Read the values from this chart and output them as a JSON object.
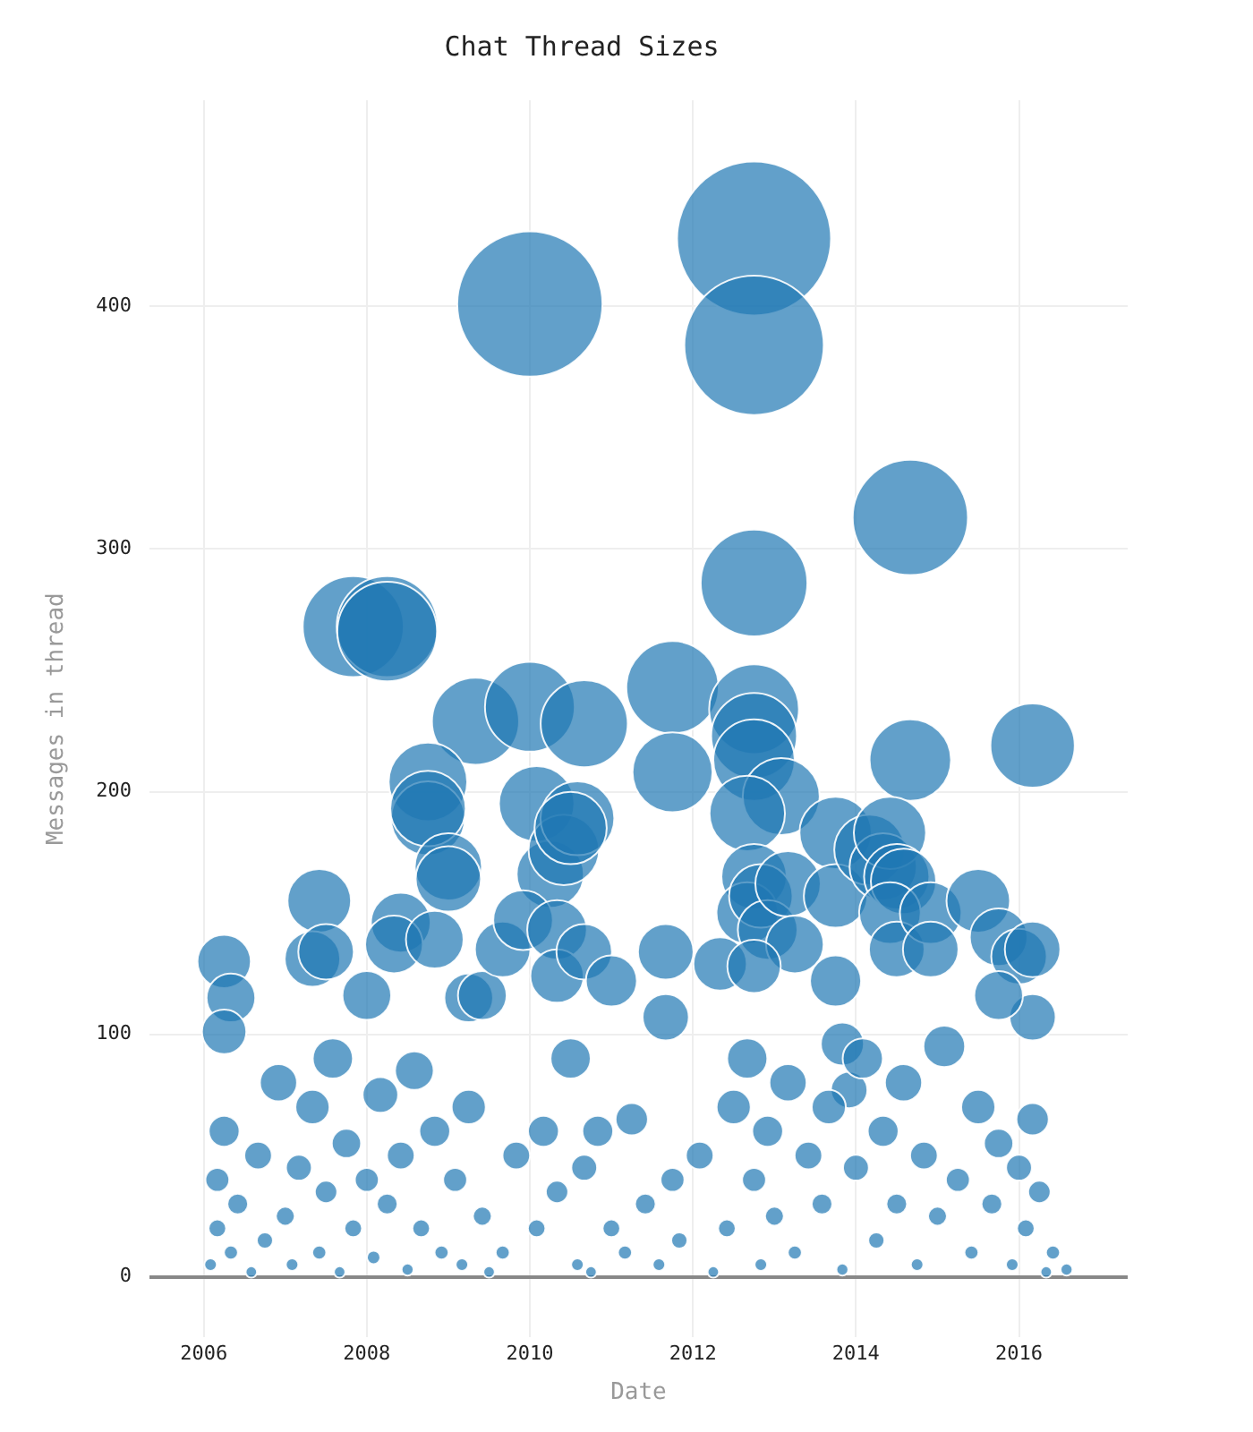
{
  "chart_data": {
    "type": "bubble",
    "title": "Chat Thread Sizes",
    "xlabel": "Date",
    "ylabel": "Messages in thread",
    "xlim": [
      "2005-05",
      "2017-05"
    ],
    "xticks": [
      "2006",
      "2008",
      "2010",
      "2012",
      "2014",
      "2016"
    ],
    "ylim": [
      -25,
      485
    ],
    "yticks": [
      0,
      100,
      200,
      300,
      400
    ],
    "grid": true,
    "legend": false,
    "series": [
      {
        "color": "#1f77b4",
        "x": [
          "2012-10",
          "2012-10",
          "2010-01",
          "2014-09",
          "2012-10",
          "2007-11",
          "2008-04",
          "2008-04",
          "2009-05",
          "2010-01",
          "2010-09",
          "2011-10",
          "2011-10",
          "2012-10",
          "2012-10",
          "2012-10",
          "2013-02",
          "2014-09",
          "2016-03",
          "2008-10",
          "2008-10",
          "2008-10",
          "2009-01",
          "2009-01",
          "2010-02",
          "2010-04",
          "2010-06",
          "2010-08",
          "2010-07",
          "2006-04",
          "2006-05",
          "2006-04",
          "2007-06",
          "2007-05",
          "2007-07",
          "2008-01",
          "2008-06",
          "2008-05",
          "2008-11",
          "2009-04",
          "2009-06",
          "2009-09",
          "2009-12",
          "2010-05",
          "2010-05",
          "2010-09",
          "2011-01",
          "2011-09",
          "2012-05",
          "2011-09",
          "2012-09",
          "2012-10",
          "2012-09",
          "2012-11",
          "2012-12",
          "2013-03",
          "2013-04",
          "2012-10",
          "2013-10",
          "2013-10",
          "2014-03",
          "2014-05",
          "2014-06",
          "2014-07",
          "2014-08",
          "2014-06",
          "2014-07",
          "2014-12",
          "2014-12",
          "2015-07",
          "2015-10",
          "2016-01",
          "2016-03",
          "2016-03",
          "2015-10",
          "2013-10",
          "2013-11",
          "2013-12",
          "2006-02",
          "2006-03",
          "2006-03",
          "2006-04",
          "2006-05",
          "2006-06",
          "2006-08",
          "2006-09",
          "2006-10",
          "2006-12",
          "2007-01",
          "2007-02",
          "2007-03",
          "2007-05",
          "2007-06",
          "2007-07",
          "2007-08",
          "2007-09",
          "2007-10",
          "2007-11",
          "2008-01",
          "2008-02",
          "2008-03",
          "2008-04",
          "2008-06",
          "2008-07",
          "2008-08",
          "2008-09",
          "2008-11",
          "2008-12",
          "2009-02",
          "2009-03",
          "2009-04",
          "2009-06",
          "2009-07",
          "2009-09",
          "2009-11",
          "2010-02",
          "2010-03",
          "2010-05",
          "2010-07",
          "2010-08",
          "2010-09",
          "2010-10",
          "2010-11",
          "2011-01",
          "2011-03",
          "2011-04",
          "2011-06",
          "2011-08",
          "2011-10",
          "2011-11",
          "2012-02",
          "2012-04",
          "2012-06",
          "2012-07",
          "2012-09",
          "2012-10",
          "2012-11",
          "2012-12",
          "2013-01",
          "2013-03",
          "2013-04",
          "2013-06",
          "2013-08",
          "2013-09",
          "2013-11",
          "2014-01",
          "2014-02",
          "2014-04",
          "2014-05",
          "2014-07",
          "2014-08",
          "2014-10",
          "2014-11",
          "2015-01",
          "2015-02",
          "2015-04",
          "2015-06",
          "2015-07",
          "2015-09",
          "2015-10",
          "2015-12",
          "2016-01",
          "2016-02",
          "2016-03",
          "2016-04",
          "2016-05",
          "2016-06",
          "2016-08"
        ],
        "values": [
          428,
          384,
          401,
          313,
          286,
          268,
          268,
          266,
          229,
          235,
          228,
          243,
          208,
          234,
          223,
          213,
          198,
          213,
          219,
          204,
          189,
          193,
          169,
          164,
          195,
          166,
          176,
          189,
          185,
          130,
          115,
          101,
          155,
          131,
          134,
          116,
          146,
          137,
          139,
          115,
          116,
          135,
          147,
          143,
          124,
          134,
          122,
          134,
          129,
          107,
          191,
          165,
          150,
          157,
          143,
          162,
          137,
          128,
          183,
          157,
          176,
          169,
          183,
          165,
          163,
          150,
          135,
          150,
          135,
          155,
          140,
          132,
          135,
          107,
          116,
          122,
          96,
          77,
          5,
          20,
          40,
          60,
          10,
          30,
          2,
          50,
          15,
          80,
          25,
          5,
          45,
          70,
          10,
          35,
          90,
          2,
          55,
          20,
          40,
          8,
          75,
          30,
          50,
          3,
          85,
          20,
          60,
          10,
          40,
          5,
          70,
          25,
          2,
          10,
          50,
          20,
          60,
          35,
          90,
          5,
          45,
          2,
          60,
          20,
          10,
          65,
          30,
          5,
          40,
          15,
          50,
          2,
          20,
          70,
          90,
          40,
          5,
          60,
          25,
          80,
          10,
          50,
          30,
          70,
          3,
          45,
          90,
          15,
          60,
          30,
          80,
          5,
          50,
          25,
          95,
          40,
          10,
          70,
          30,
          55,
          5,
          45,
          20,
          65,
          35,
          2,
          10,
          3
        ],
        "sizes": [
          1,
          0.82,
          0.89,
          0.56,
          0.48,
          0.43,
          0.43,
          0.42,
          0.32,
          0.34,
          0.32,
          0.36,
          0.27,
          0.34,
          0.31,
          0.28,
          0.25,
          0.28,
          0.3,
          0.26,
          0.23,
          0.24,
          0.19,
          0.18,
          0.24,
          0.19,
          0.21,
          0.23,
          0.22,
          0.12,
          0.1,
          0.083,
          0.17,
          0.13,
          0.13,
          0.1,
          0.15,
          0.14,
          0.14,
          0.1,
          0.1,
          0.13,
          0.15,
          0.15,
          0.12,
          0.13,
          0.11,
          0.13,
          0.12,
          0.09,
          0.24,
          0.18,
          0.16,
          0.17,
          0.15,
          0.18,
          0.14,
          0.12,
          0.22,
          0.17,
          0.21,
          0.19,
          0.22,
          0.18,
          0.18,
          0.16,
          0.13,
          0.16,
          0.13,
          0.17,
          0.14,
          0.13,
          0.13,
          0.09,
          0.1,
          0.11,
          0.078,
          0.056,
          0.0066,
          0.013,
          0.024,
          0.04,
          0.0083,
          0.018,
          0.0055,
          0.032,
          0.011,
          0.058,
          0.015,
          0.0066,
          0.028,
          0.049,
          0.0083,
          0.021,
          0.068,
          0.0055,
          0.036,
          0.013,
          0.024,
          0.0076,
          0.053,
          0.018,
          0.032,
          0.006,
          0.063,
          0.013,
          0.04,
          0.0083,
          0.024,
          0.0066,
          0.049,
          0.015,
          0.0055,
          0.0083,
          0.032,
          0.013,
          0.04,
          0.021,
          0.068,
          0.0066,
          0.028,
          0.0055,
          0.04,
          0.013,
          0.0083,
          0.044,
          0.018,
          0.0066,
          0.024,
          0.011,
          0.032,
          0.0055,
          0.013,
          0.049,
          0.068,
          0.024,
          0.0066,
          0.04,
          0.015,
          0.058,
          0.0083,
          0.032,
          0.018,
          0.049,
          0.006,
          0.028,
          0.068,
          0.011,
          0.04,
          0.018,
          0.058,
          0.0066,
          0.032,
          0.015,
          0.073,
          0.024,
          0.0083,
          0.049,
          0.018,
          0.036,
          0.0066,
          0.028,
          0.013,
          0.044,
          0.021,
          0.0055,
          0.0083,
          0.006
        ]
      }
    ]
  }
}
